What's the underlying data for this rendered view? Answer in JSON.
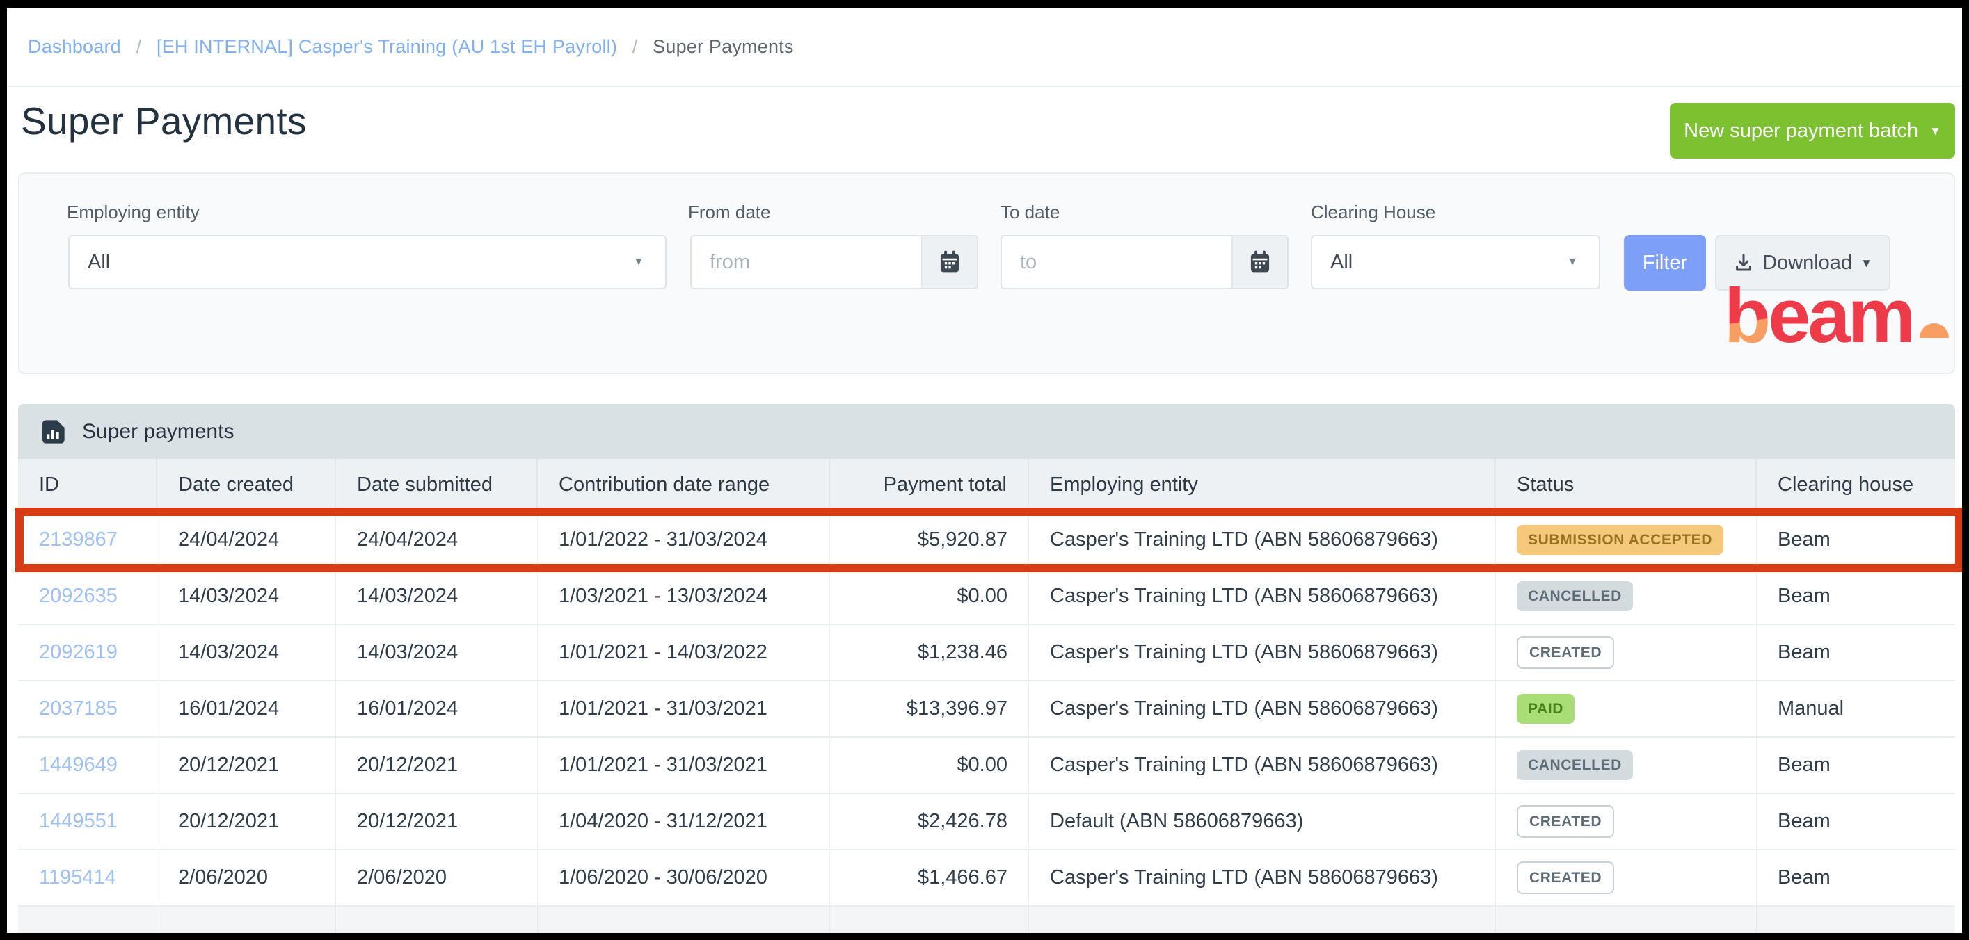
{
  "breadcrumb": {
    "separator": "/",
    "items": [
      {
        "label": "Dashboard"
      },
      {
        "label": "[EH INTERNAL] Casper's Training (AU 1st EH Payroll)"
      },
      {
        "label": "Super Payments"
      }
    ]
  },
  "page": {
    "title": "Super Payments"
  },
  "actions": {
    "new_batch_label": "New super payment batch"
  },
  "filters": {
    "employing_entity": {
      "label": "Employing entity",
      "value": "All"
    },
    "from_date": {
      "label": "From date",
      "placeholder": "from"
    },
    "to_date": {
      "label": "To date",
      "placeholder": "to"
    },
    "clearing_house": {
      "label": "Clearing House",
      "value": "All"
    },
    "filter_button": "Filter",
    "download_button": "Download"
  },
  "logo": {
    "b": "b",
    "eam": "eam"
  },
  "table": {
    "panel_title": "Super payments",
    "columns": [
      "ID",
      "Date created",
      "Date submitted",
      "Contribution date range",
      "Payment total",
      "Employing entity",
      "Status",
      "Clearing house"
    ],
    "rows": [
      {
        "id": "2139867",
        "date_created": "24/04/2024",
        "date_submitted": "24/04/2024",
        "contribution_range": "1/01/2022 - 31/03/2024",
        "payment_total": "$5,920.87",
        "employing_entity": "Casper's Training LTD (ABN 58606879663)",
        "status": "SUBMISSION ACCEPTED",
        "status_type": "submission-accepted",
        "clearing_house": "Beam",
        "highlighted": true
      },
      {
        "id": "2092635",
        "date_created": "14/03/2024",
        "date_submitted": "14/03/2024",
        "contribution_range": "1/03/2021 - 13/03/2024",
        "payment_total": "$0.00",
        "employing_entity": "Casper's Training LTD (ABN 58606879663)",
        "status": "CANCELLED",
        "status_type": "cancelled",
        "clearing_house": "Beam",
        "highlighted": false
      },
      {
        "id": "2092619",
        "date_created": "14/03/2024",
        "date_submitted": "14/03/2024",
        "contribution_range": "1/01/2021 - 14/03/2022",
        "payment_total": "$1,238.46",
        "employing_entity": "Casper's Training LTD (ABN 58606879663)",
        "status": "CREATED",
        "status_type": "created",
        "clearing_house": "Beam",
        "highlighted": false
      },
      {
        "id": "2037185",
        "date_created": "16/01/2024",
        "date_submitted": "16/01/2024",
        "contribution_range": "1/01/2021 - 31/03/2021",
        "payment_total": "$13,396.97",
        "employing_entity": "Casper's Training LTD (ABN 58606879663)",
        "status": "PAID",
        "status_type": "paid",
        "clearing_house": "Manual",
        "highlighted": false
      },
      {
        "id": "1449649",
        "date_created": "20/12/2021",
        "date_submitted": "20/12/2021",
        "contribution_range": "1/01/2021 - 31/03/2021",
        "payment_total": "$0.00",
        "employing_entity": "Casper's Training LTD (ABN 58606879663)",
        "status": "CANCELLED",
        "status_type": "cancelled",
        "clearing_house": "Beam",
        "highlighted": false
      },
      {
        "id": "1449551",
        "date_created": "20/12/2021",
        "date_submitted": "20/12/2021",
        "contribution_range": "1/04/2020 - 31/12/2021",
        "payment_total": "$2,426.78",
        "employing_entity": "Default (ABN 58606879663)",
        "status": "CREATED",
        "status_type": "created",
        "clearing_house": "Beam",
        "highlighted": false
      },
      {
        "id": "1195414",
        "date_created": "2/06/2020",
        "date_submitted": "2/06/2020",
        "contribution_range": "1/06/2020 - 30/06/2020",
        "payment_total": "$1,466.67",
        "employing_entity": "Casper's Training LTD (ABN 58606879663)",
        "status": "CREATED",
        "status_type": "created",
        "clearing_house": "Beam",
        "highlighted": false
      }
    ]
  },
  "colors": {
    "accent_green": "#7cc230",
    "filter_blue": "#7e9ff7",
    "highlight_red": "#d83c14",
    "badge_amber": "#f5c87c",
    "badge_green": "#a9de76",
    "badge_gray": "#d4dbdf",
    "logo_red": "#ee3b49",
    "logo_orange": "#f89e62"
  }
}
